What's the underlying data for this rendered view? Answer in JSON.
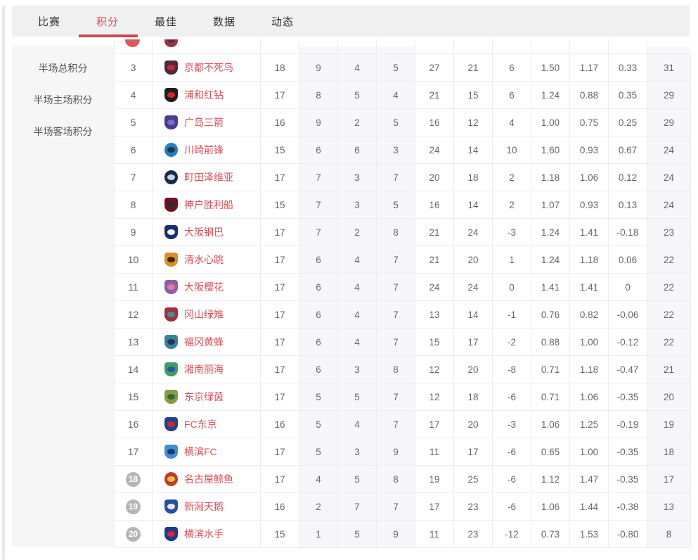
{
  "colors": {
    "accent_red": "#cb4a52",
    "team_link_red": "#d2515a",
    "relegation_badge_gray": "#b5b5b5",
    "promo_badge_red": "#e05858",
    "shaded_column": "#f7f7fb",
    "tabbar_bg": "#f0f0f1",
    "sidebar_bg": "#f6f6f7"
  },
  "tabs": {
    "items": [
      {
        "label": "比赛",
        "active": false
      },
      {
        "label": "积分",
        "active": true
      },
      {
        "label": "最佳",
        "active": false
      },
      {
        "label": "数据",
        "active": false
      },
      {
        "label": "动态",
        "active": false
      }
    ]
  },
  "sidebar": {
    "items": [
      {
        "label": "半场总积分"
      },
      {
        "label": "半场主场积分"
      },
      {
        "label": "半场客场积分"
      }
    ]
  },
  "table": {
    "partial_row": {
      "badge": "red",
      "logo": {
        "bg": "#8e2034",
        "accent": "#5a1522"
      }
    },
    "rows": [
      {
        "rank": "3",
        "badge": "none",
        "team": "京都不死鸟",
        "logo": {
          "shape": "shield",
          "bg": "#50283c",
          "accent": "#c2273d"
        },
        "stats": [
          "18",
          "9",
          "4",
          "5",
          "27",
          "21",
          "6",
          "1.50",
          "1.17",
          "0.33",
          "31"
        ]
      },
      {
        "rank": "4",
        "badge": "none",
        "team": "浦和红钻",
        "logo": {
          "shape": "shield",
          "bg": "#221c1c",
          "accent": "#d4252f"
        },
        "stats": [
          "17",
          "8",
          "5",
          "4",
          "21",
          "15",
          "6",
          "1.24",
          "0.88",
          "0.35",
          "29"
        ]
      },
      {
        "rank": "5",
        "badge": "none",
        "team": "广岛三箭",
        "logo": {
          "shape": "shield",
          "bg": "#4a3b8c",
          "accent": "#7a6cc0"
        },
        "stats": [
          "16",
          "9",
          "2",
          "5",
          "16",
          "12",
          "4",
          "1.00",
          "0.75",
          "0.25",
          "29"
        ]
      },
      {
        "rank": "6",
        "badge": "none",
        "team": "川崎前锋",
        "logo": {
          "shape": "circle",
          "bg": "#2a7db5",
          "accent": "#123a5c"
        },
        "stats": [
          "15",
          "6",
          "6",
          "3",
          "24",
          "14",
          "10",
          "1.60",
          "0.93",
          "0.67",
          "24"
        ]
      },
      {
        "rank": "7",
        "badge": "none",
        "team": "町田泽维亚",
        "logo": {
          "shape": "circle",
          "bg": "#1b2a4a",
          "accent": "#c8d4e8"
        },
        "stats": [
          "17",
          "7",
          "3",
          "7",
          "20",
          "18",
          "2",
          "1.18",
          "1.06",
          "0.12",
          "24"
        ]
      },
      {
        "rank": "8",
        "badge": "none",
        "team": "神户胜利船",
        "logo": {
          "shape": "shield",
          "bg": "#6e1220",
          "accent": "#2b2b2b"
        },
        "stats": [
          "15",
          "7",
          "3",
          "5",
          "16",
          "14",
          "2",
          "1.07",
          "0.93",
          "0.13",
          "24"
        ]
      },
      {
        "rank": "9",
        "badge": "none",
        "team": "大阪钢巴",
        "logo": {
          "shape": "shield",
          "bg": "#1a2f6e",
          "accent": "#ffffff"
        },
        "stats": [
          "17",
          "7",
          "2",
          "8",
          "21",
          "24",
          "-3",
          "1.24",
          "1.41",
          "-0.18",
          "23"
        ]
      },
      {
        "rank": "10",
        "badge": "none",
        "team": "清水心跳",
        "logo": {
          "shape": "shield",
          "bg": "#d98e2b",
          "accent": "#3a2c14"
        },
        "stats": [
          "17",
          "6",
          "4",
          "7",
          "21",
          "20",
          "1",
          "1.24",
          "1.18",
          "0.06",
          "22"
        ]
      },
      {
        "rank": "11",
        "badge": "none",
        "team": "大阪樱花",
        "logo": {
          "shape": "shield",
          "bg": "#8a5fa8",
          "accent": "#e17ba0"
        },
        "stats": [
          "17",
          "6",
          "4",
          "7",
          "24",
          "24",
          "0",
          "1.41",
          "1.41",
          "0",
          "22"
        ]
      },
      {
        "rank": "12",
        "badge": "none",
        "team": "冈山绿雉",
        "logo": {
          "shape": "shield",
          "bg": "#a92b3e",
          "accent": "#3f8f8a"
        },
        "stats": [
          "17",
          "6",
          "4",
          "7",
          "13",
          "14",
          "-1",
          "0.76",
          "0.82",
          "-0.06",
          "22"
        ]
      },
      {
        "rank": "13",
        "badge": "none",
        "team": "福冈黄蜂",
        "logo": {
          "shape": "shield",
          "bg": "#3f7f96",
          "accent": "#1d3a5f"
        },
        "stats": [
          "17",
          "6",
          "4",
          "7",
          "15",
          "17",
          "-2",
          "0.88",
          "1.00",
          "-0.12",
          "22"
        ]
      },
      {
        "rank": "14",
        "badge": "none",
        "team": "湘南丽海",
        "logo": {
          "shape": "shield",
          "bg": "#3f9e63",
          "accent": "#2458a8"
        },
        "stats": [
          "17",
          "6",
          "3",
          "8",
          "12",
          "20",
          "-8",
          "0.71",
          "1.18",
          "-0.47",
          "21"
        ]
      },
      {
        "rank": "15",
        "badge": "none",
        "team": "东京绿茵",
        "logo": {
          "shape": "shield",
          "bg": "#8a9a3f",
          "accent": "#2f6b3a"
        },
        "stats": [
          "17",
          "5",
          "5",
          "7",
          "12",
          "18",
          "-6",
          "0.71",
          "1.06",
          "-0.35",
          "20"
        ]
      },
      {
        "rank": "16",
        "badge": "none",
        "team": "FC东京",
        "logo": {
          "shape": "shield",
          "bg": "#24418c",
          "accent": "#c62a35"
        },
        "stats": [
          "16",
          "5",
          "4",
          "7",
          "17",
          "20",
          "-3",
          "1.06",
          "1.25",
          "-0.19",
          "19"
        ]
      },
      {
        "rank": "17",
        "badge": "none",
        "team": "横滨FC",
        "logo": {
          "shape": "shield",
          "bg": "#3f8fd1",
          "accent": "#1d3a6e"
        },
        "stats": [
          "17",
          "5",
          "3",
          "9",
          "11",
          "17",
          "-6",
          "0.65",
          "1.00",
          "-0.35",
          "18"
        ]
      },
      {
        "rank": "18",
        "badge": "gray",
        "team": "名古屋鲸鱼",
        "logo": {
          "shape": "circle",
          "bg": "#c43a2a",
          "accent": "#e8c34a"
        },
        "stats": [
          "17",
          "4",
          "5",
          "8",
          "19",
          "25",
          "-6",
          "1.12",
          "1.47",
          "-0.35",
          "17"
        ]
      },
      {
        "rank": "19",
        "badge": "gray",
        "team": "新潟天鹅",
        "logo": {
          "shape": "shield",
          "bg": "#2a4fa0",
          "accent": "#e8e8ee"
        },
        "stats": [
          "16",
          "2",
          "7",
          "7",
          "17",
          "23",
          "-6",
          "1.06",
          "1.44",
          "-0.38",
          "13"
        ]
      },
      {
        "rank": "20",
        "badge": "gray",
        "team": "横滨水手",
        "logo": {
          "shape": "shield",
          "bg": "#1d3a8c",
          "accent": "#cf2b35"
        },
        "stats": [
          "15",
          "1",
          "5",
          "9",
          "11",
          "23",
          "-12",
          "0.73",
          "1.53",
          "-0.80",
          "8"
        ]
      }
    ]
  }
}
